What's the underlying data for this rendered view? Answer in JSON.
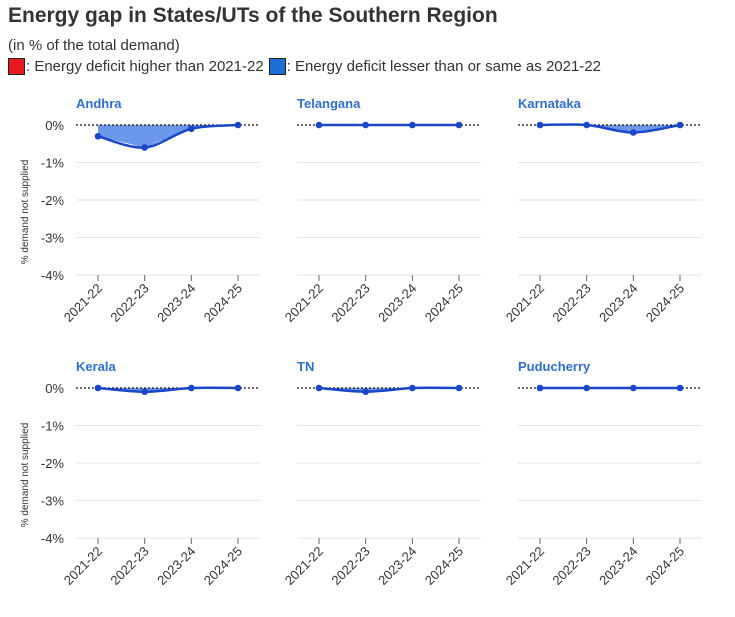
{
  "page": {
    "title": "Energy gap in States/UTs of the Southern Region",
    "subtitle": "(in % of the total demand)"
  },
  "legend": [
    {
      "label": ": Energy deficit higher than 2021-22",
      "color": "#e8191e"
    },
    {
      "label": ": Energy deficit lesser than or same as 2021-22",
      "color": "#1d6ed6"
    }
  ],
  "colors": {
    "line": "#1a47c9",
    "fill": "#5b8de8",
    "panel_title": "#2f6fd0",
    "grid": "#e6e6e6"
  },
  "chart_data": [
    {
      "type": "area",
      "title": "Andhra",
      "categories": [
        "2021-22",
        "2022-23",
        "2023-24",
        "2024-25"
      ],
      "values": [
        -0.3,
        -0.6,
        -0.1,
        0.0
      ],
      "ylabel": "% demand not supplied",
      "ylim": [
        -4,
        0
      ],
      "yticks": [
        "0%",
        "-1%",
        "-2%",
        "-3%",
        "-4%"
      ]
    },
    {
      "type": "area",
      "title": "Telangana",
      "categories": [
        "2021-22",
        "2022-23",
        "2023-24",
        "2024-25"
      ],
      "values": [
        0.0,
        0.0,
        0.0,
        0.0
      ],
      "ylabel": "",
      "ylim": [
        -4,
        0
      ]
    },
    {
      "type": "area",
      "title": "Karnataka",
      "categories": [
        "2021-22",
        "2022-23",
        "2023-24",
        "2024-25"
      ],
      "values": [
        0.0,
        0.0,
        -0.2,
        0.0
      ],
      "ylabel": "",
      "ylim": [
        -4,
        0
      ]
    },
    {
      "type": "area",
      "title": "Kerala",
      "categories": [
        "2021-22",
        "2022-23",
        "2023-24",
        "2024-25"
      ],
      "values": [
        0.0,
        -0.1,
        0.0,
        0.0
      ],
      "ylabel": "% demand not supplied",
      "ylim": [
        -4,
        0
      ],
      "yticks": [
        "0%",
        "-1%",
        "-2%",
        "-3%",
        "-4%"
      ]
    },
    {
      "type": "area",
      "title": "TN",
      "categories": [
        "2021-22",
        "2022-23",
        "2023-24",
        "2024-25"
      ],
      "values": [
        0.0,
        -0.1,
        0.0,
        0.0
      ],
      "ylabel": "",
      "ylim": [
        -4,
        0
      ]
    },
    {
      "type": "area",
      "title": "Puducherry",
      "categories": [
        "2021-22",
        "2022-23",
        "2023-24",
        "2024-25"
      ],
      "values": [
        0.0,
        0.0,
        0.0,
        0.0
      ],
      "ylabel": "",
      "ylim": [
        -4,
        0
      ]
    }
  ]
}
